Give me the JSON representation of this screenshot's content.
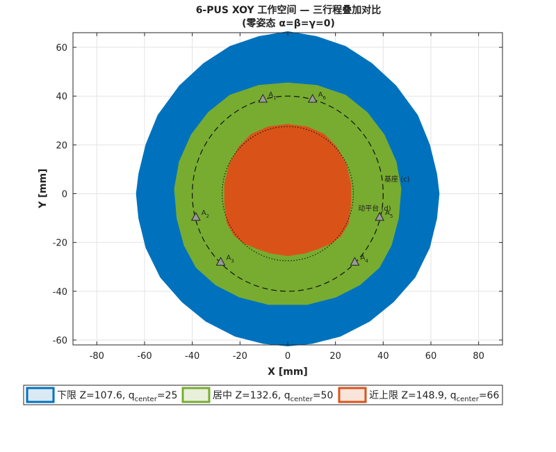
{
  "chart_data": {
    "type": "area",
    "title": "6-PUS XOY 工作空间 — 三行程叠加对比",
    "subtitle": "(零姿态 α=β=γ=0)",
    "xlabel": "X [mm]",
    "ylabel": "Y [mm]",
    "xlim": [
      -90,
      90
    ],
    "ylim": [
      -62,
      66
    ],
    "xticks": [
      -80,
      -60,
      -40,
      -20,
      0,
      20,
      40,
      60,
      80
    ],
    "yticks": [
      -60,
      -40,
      -20,
      0,
      20,
      40,
      60
    ],
    "grid": true,
    "legend_position": "bottom",
    "series": [
      {
        "name": "下限 Z=107.6, q",
        "name_sub": "center",
        "name_suffix": "=25",
        "color": "#0072BD",
        "face": "#dbe9f5",
        "boundary_x": [
          0,
          12,
          24,
          35,
          45,
          54,
          59,
          62,
          63,
          62,
          59,
          53,
          44,
          34,
          22,
          10,
          0,
          -10,
          -22,
          -34,
          -44,
          -53,
          -59,
          -62,
          -63,
          -62,
          -59,
          -54,
          -45,
          -35,
          -24,
          -12,
          0
        ],
        "boundary_y": [
          66,
          64,
          60,
          53,
          44,
          32,
          20,
          8,
          0,
          -10,
          -22,
          -34,
          -44,
          -52,
          -58,
          -61,
          -62,
          -61,
          -58,
          -52,
          -44,
          -34,
          -22,
          -10,
          0,
          8,
          20,
          32,
          44,
          53,
          60,
          64,
          66
        ]
      },
      {
        "name": "居中 Z=132.6, q",
        "name_sub": "center",
        "name_suffix": "=50",
        "color": "#77AC30",
        "face": "#e8f0dc",
        "boundary_x": [
          0,
          12,
          24,
          33,
          40,
          45,
          47,
          46,
          43,
          38,
          30,
          20,
          8,
          0,
          -8,
          -20,
          -30,
          -38,
          -43,
          -46,
          -47,
          -45,
          -40,
          -33,
          -24,
          -12,
          0
        ],
        "boundary_y": [
          45,
          44,
          40,
          33,
          24,
          13,
          2,
          -10,
          -21,
          -30,
          -37,
          -42,
          -45,
          -45,
          -45,
          -42,
          -37,
          -30,
          -21,
          -10,
          2,
          13,
          24,
          33,
          40,
          44,
          45
        ]
      },
      {
        "name": "近上限 Z=148.9, q",
        "name_sub": "center",
        "name_suffix": "=66",
        "color": "#D95319",
        "face": "#f9e4da",
        "boundary_x": [
          0,
          8,
          15,
          20,
          24,
          26,
          26,
          25,
          22,
          18,
          13,
          7,
          0,
          -7,
          -13,
          -18,
          -22,
          -25,
          -26,
          -26,
          -24,
          -20,
          -15,
          -8,
          0
        ],
        "boundary_y": [
          28,
          27,
          24,
          19,
          12,
          4,
          -4,
          -12,
          -17,
          -20,
          -22,
          -24,
          -25,
          -24,
          -22,
          -20,
          -17,
          -12,
          -4,
          4,
          12,
          19,
          24,
          27,
          28
        ]
      }
    ],
    "reference_circles": [
      {
        "label": "基座 (c)",
        "radius": 40,
        "style": "dashed"
      },
      {
        "label": "动平台 (d)",
        "radius": 27.5,
        "style": "dotted"
      }
    ],
    "anchors": [
      {
        "label": "A",
        "sub": "1",
        "x": -10.4,
        "y": 38.9
      },
      {
        "label": "A",
        "sub": "6",
        "x": 10.4,
        "y": 38.9
      },
      {
        "label": "A",
        "sub": "2",
        "x": -38.5,
        "y": -9.5
      },
      {
        "label": "A",
        "sub": "5",
        "x": 38.5,
        "y": -9.5
      },
      {
        "label": "A",
        "sub": "3",
        "x": -28.1,
        "y": -27.9
      },
      {
        "label": "A",
        "sub": "4",
        "x": 28.1,
        "y": -27.9
      }
    ]
  }
}
